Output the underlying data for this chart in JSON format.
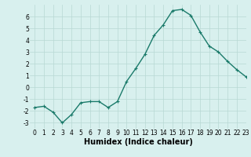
{
  "x": [
    0,
    1,
    2,
    3,
    4,
    5,
    6,
    7,
    8,
    9,
    10,
    11,
    12,
    13,
    14,
    15,
    16,
    17,
    18,
    19,
    20,
    21,
    22,
    23
  ],
  "y": [
    -1.7,
    -1.6,
    -2.1,
    -3.0,
    -2.3,
    -1.3,
    -1.2,
    -1.2,
    -1.7,
    -1.2,
    0.5,
    1.6,
    2.8,
    4.4,
    5.3,
    6.5,
    6.6,
    6.1,
    4.7,
    3.5,
    3.0,
    2.2,
    1.5,
    0.9
  ],
  "line_color": "#1a7a6a",
  "marker": "+",
  "markersize": 3,
  "linewidth": 1.0,
  "bg_color": "#d8f0ee",
  "grid_color": "#b8d8d4",
  "xlabel": "Humidex (Indice chaleur)",
  "xlim": [
    -0.5,
    23
  ],
  "ylim": [
    -3.5,
    7.0
  ],
  "yticks": [
    -3,
    -2,
    -1,
    0,
    1,
    2,
    3,
    4,
    5,
    6
  ],
  "xticks": [
    0,
    1,
    2,
    3,
    4,
    5,
    6,
    7,
    8,
    9,
    10,
    11,
    12,
    13,
    14,
    15,
    16,
    17,
    18,
    19,
    20,
    21,
    22,
    23
  ],
  "tick_fontsize": 5.5,
  "label_fontsize": 7.0,
  "label_fontweight": "bold"
}
